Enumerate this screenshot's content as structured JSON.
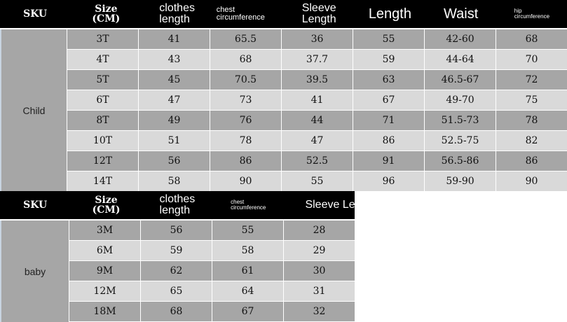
{
  "child": {
    "headers": [
      "SKU",
      "Size\n(CM)",
      "clothes\nlength",
      "chest\ncircumference",
      "Sleeve\nLength",
      "Length",
      "Waist",
      "hip\ncircumference"
    ],
    "group": "Child",
    "rows": [
      [
        "3T",
        "41",
        "65.5",
        "36",
        "55",
        "42-60",
        "68"
      ],
      [
        "4T",
        "43",
        "68",
        "37.7",
        "59",
        "44-64",
        "70"
      ],
      [
        "5T",
        "45",
        "70.5",
        "39.5",
        "63",
        "46.5-67",
        "72"
      ],
      [
        "6T",
        "47",
        "73",
        "41",
        "67",
        "49-70",
        "75"
      ],
      [
        "8T",
        "49",
        "76",
        "44",
        "71",
        "51.5-73",
        "78"
      ],
      [
        "10T",
        "51",
        "78",
        "47",
        "86",
        "52.5-75",
        "82"
      ],
      [
        "12T",
        "56",
        "86",
        "52.5",
        "91",
        "56.5-86",
        "86"
      ],
      [
        "14T",
        "58",
        "90",
        "55",
        "96",
        "59-90",
        "90"
      ]
    ]
  },
  "baby": {
    "headers": [
      "SKU",
      "Size\n(CM)",
      "clothes\nlength",
      "chest\ncircumference",
      "Sleeve Le"
    ],
    "group": "baby",
    "rows": [
      [
        "3M",
        "56",
        "55",
        "28"
      ],
      [
        "6M",
        "59",
        "58",
        "29"
      ],
      [
        "9M",
        "62",
        "61",
        "30"
      ],
      [
        "12M",
        "65",
        "64",
        "31"
      ],
      [
        "18M",
        "68",
        "67",
        "32"
      ]
    ]
  },
  "colors": {
    "header_bg": "#000000",
    "row_dark": "#a6a6a6",
    "row_light": "#d9d9d9"
  }
}
